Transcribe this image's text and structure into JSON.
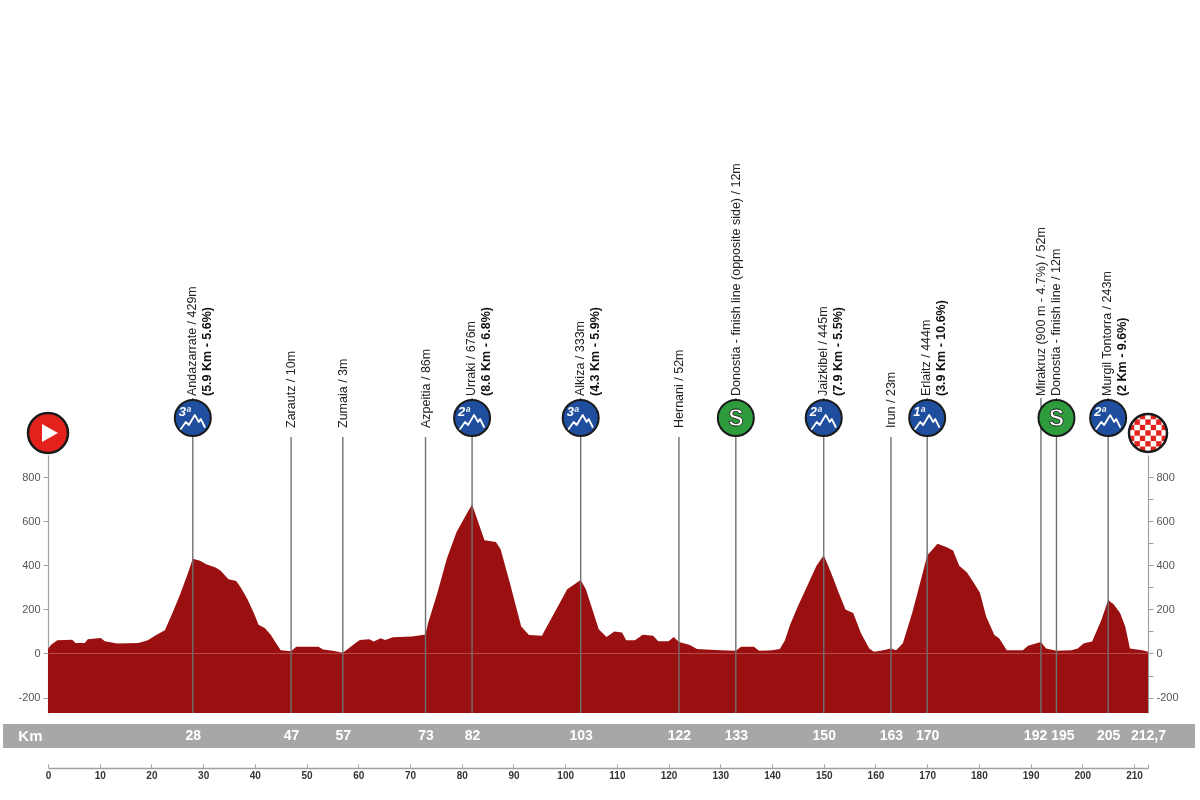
{
  "chart_data": {
    "type": "area",
    "color": "#9a1010",
    "x": [
      0,
      0.6,
      1.8,
      4.7,
      5.3,
      7.1,
      7.7,
      10.2,
      11,
      13.4,
      17.5,
      19.3,
      21,
      22.6,
      24,
      25.5,
      27,
      28,
      29.4,
      30.6,
      32.4,
      33.4,
      34.9,
      36.4,
      37.3,
      38.6,
      39.8,
      40.7,
      41.9,
      43.1,
      44.1,
      45,
      47,
      48,
      52.3,
      53.2,
      55.1,
      57,
      58.1,
      59.4,
      60.3,
      62.1,
      63,
      64.3,
      65.2,
      66.7,
      70.4,
      73,
      73.5,
      75.3,
      77.1,
      79,
      80.8,
      82,
      84.4,
      86.6,
      87.5,
      89.3,
      91.5,
      93,
      95.5,
      97.9,
      100.4,
      103,
      104,
      106.5,
      108,
      109.5,
      111,
      111.8,
      113.5,
      115,
      117,
      118,
      120,
      121,
      122,
      124,
      125.5,
      130,
      133,
      134,
      136.5,
      137.5,
      140,
      141.5,
      142.5,
      143.5,
      145,
      146.8,
      148.6,
      150,
      151.4,
      152.9,
      154.2,
      155.7,
      157.2,
      158.8,
      159.7,
      161,
      163,
      164,
      165.3,
      167.1,
      169,
      170,
      172,
      173.8,
      175,
      176.2,
      177.7,
      179,
      180.2,
      181.4,
      183,
      183.9,
      185.4,
      188.5,
      189.5,
      192,
      193,
      195,
      197.9,
      199.1,
      200.3,
      201.9,
      203.7,
      205,
      206.1,
      207.3,
      208.3,
      209.2,
      211.6,
      212.7
    ],
    "values": [
      20,
      40,
      60,
      62,
      48,
      48,
      65,
      70,
      55,
      45,
      48,
      60,
      85,
      105,
      180,
      265,
      360,
      429,
      421,
      405,
      390,
      375,
      337,
      329,
      298,
      245,
      184,
      130,
      115,
      84,
      46,
      15,
      10,
      31,
      31,
      18,
      12,
      3,
      23,
      46,
      61,
      64,
      54,
      69,
      61,
      73,
      77,
      86,
      138,
      275,
      428,
      551,
      627,
      676,
      513,
      505,
      474,
      321,
      122,
      84,
      80,
      184,
      291,
      333,
      291,
      110,
      75,
      100,
      95,
      60,
      60,
      85,
      80,
      55,
      55,
      75,
      52,
      40,
      20,
      15,
      12,
      30,
      30,
      12,
      15,
      20,
      60,
      130,
      214,
      306,
      398,
      445,
      367,
      275,
      199,
      184,
      92,
      23,
      8,
      12,
      23,
      15,
      46,
      184,
      352,
      444,
      497,
      482,
      467,
      398,
      367,
      321,
      275,
      168,
      84,
      69,
      15,
      15,
      35,
      52,
      23,
      12,
      15,
      23,
      46,
      54,
      153,
      243,
      222,
      184,
      122,
      23,
      15,
      8
    ],
    "xlim": [
      0,
      212.7
    ],
    "xticks": [
      0,
      10,
      20,
      30,
      40,
      50,
      60,
      70,
      80,
      90,
      100,
      110,
      120,
      130,
      140,
      150,
      160,
      170,
      180,
      190,
      200,
      210,
      {
        "value": 212.7,
        "label": null
      }
    ],
    "x2lim": [
      0,
      212.7
    ],
    "x2ticks": [
      28,
      47,
      57,
      73,
      82,
      103,
      122,
      133,
      150,
      163,
      170,
      192,
      195,
      205,
      {
        "value": 212.7,
        "label": "212,7"
      }
    ],
    "x2label": "Km",
    "ylim": [
      -270,
      900
    ],
    "yticks": [
      -200,
      {
        "value": -100,
        "label": null
      },
      0,
      {
        "value": 100,
        "label": null
      },
      200,
      {
        "value": 300,
        "label": null
      },
      400,
      {
        "value": 500,
        "label": null
      },
      600,
      {
        "value": 700,
        "label": null
      },
      800
    ],
    "y2lim": [
      -270,
      900
    ],
    "y2ticks": [
      -200,
      {
        "value": -100,
        "label": null
      },
      0,
      {
        "value": 100,
        "label": null
      },
      200,
      {
        "value": 300,
        "label": null
      },
      400,
      {
        "value": 500,
        "label": null
      },
      600,
      {
        "value": 700,
        "label": null
      },
      800
    ],
    "bands": [
      {
        "axis": "y",
        "from": -270,
        "to": 0,
        "color": "#9a1010"
      }
    ],
    "ref_lines": [
      {
        "axis": "x",
        "value": 28,
        "label": "Andazarrate / 429m\n(5.9 Km - 5.6%)",
        "color": "#707070"
      },
      {
        "axis": "x",
        "value": 82,
        "label": "Urraki / 676m\n(8.6 Km - 6.8%)",
        "color": "#707070"
      },
      {
        "axis": "x",
        "value": 103,
        "label": "Alkiza / 333m\n(4.3 Km - 5.9%)",
        "color": "#707070"
      },
      {
        "axis": "x",
        "value": 133,
        "label": "Donostia - finish line (opposite side) / 12m",
        "color": "#707070"
      },
      {
        "axis": "x",
        "value": 150,
        "label": "Jaizkibel / 445m\n(7.9 Km - 5.5%)",
        "color": "#707070"
      },
      {
        "axis": "x",
        "value": 170,
        "label": "Erlaitz / 444m\n(3.9 Km - 10.6%)",
        "color": "#707070"
      },
      {
        "axis": "x",
        "value": 195,
        "label": "Donostia - finish line / 12m",
        "color": "#707070"
      },
      {
        "axis": "x",
        "value": 205,
        "label": "Murgil Tontorra / 243m\n(2 Km - 9.6%)",
        "color": "#707070"
      },
      {
        "axis": "x",
        "value": 47,
        "label": "Zarautz / 10m",
        "color": "#707070"
      },
      {
        "axis": "x",
        "value": 57,
        "label": "Zumaia / 3m",
        "color": "#707070"
      },
      {
        "axis": "x",
        "value": 73,
        "label": "Azpeitia / 86m",
        "color": "#707070"
      },
      {
        "axis": "x",
        "value": 122,
        "label": "Hernani / 52m",
        "color": "#707070"
      },
      {
        "axis": "x",
        "value": 163,
        "label": "Irun / 23m",
        "color": "#707070"
      },
      {
        "axis": "x",
        "value": 192,
        "label": "Mirakruz (900 m - 4.7%) / 52m",
        "color": "#707070"
      }
    ],
    "annotations": [
      "3ª",
      "2ª",
      "3ª",
      "S",
      "2ª",
      "1ª",
      "S",
      "2ª"
    ]
  }
}
